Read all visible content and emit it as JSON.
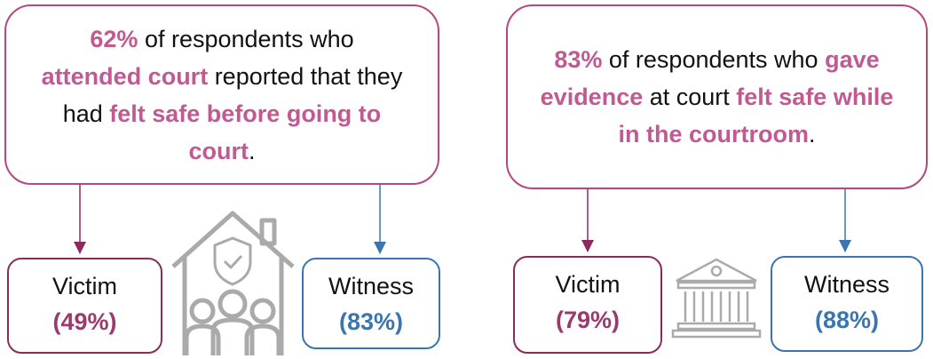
{
  "panels": [
    {
      "callout": [
        {
          "text": "62%",
          "highlight": true
        },
        {
          "text": " of respondents who ",
          "highlight": false
        },
        {
          "text": "attended court",
          "highlight": true
        },
        {
          "text": " reported that they had ",
          "highlight": false
        },
        {
          "text": "felt safe before going to court",
          "highlight": true
        },
        {
          "text": ".",
          "highlight": false
        }
      ],
      "victim": {
        "label": "Victim",
        "share": "(49%)"
      },
      "witness": {
        "label": "Witness",
        "share": "(83%)"
      }
    },
    {
      "callout": [
        {
          "text": "83%",
          "highlight": true
        },
        {
          "text": " of respondents who ",
          "highlight": false
        },
        {
          "text": "gave evidence",
          "highlight": true
        },
        {
          "text": " at court ",
          "highlight": false
        },
        {
          "text": "felt safe while in the courtroom",
          "highlight": true
        },
        {
          "text": ".",
          "highlight": false
        }
      ],
      "victim": {
        "label": "Victim",
        "share": "(79%)"
      },
      "witness": {
        "label": "Witness",
        "share": "(88%)"
      }
    }
  ]
}
